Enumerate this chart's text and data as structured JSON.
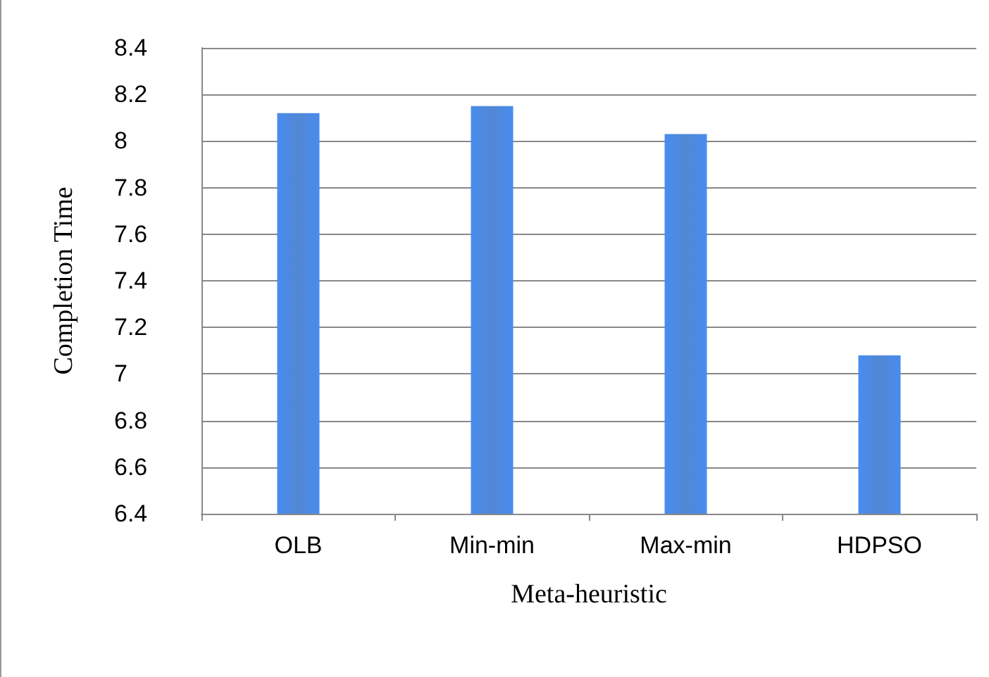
{
  "chart_data": {
    "type": "bar",
    "xlabel": "Meta-heuristic",
    "ylabel": "Completion Time",
    "categories": [
      "OLB",
      "Min-min",
      "Max-min",
      "HDPSO"
    ],
    "values": [
      8.12,
      8.15,
      8.03,
      7.08
    ],
    "color": "#3f7ad0",
    "ylim": [
      6.4,
      8.4
    ],
    "yticks": [
      6.4,
      6.6,
      6.8,
      7,
      7.2,
      7.4,
      7.6,
      7.8,
      8,
      8.2,
      8.4
    ],
    "grid": "y"
  }
}
